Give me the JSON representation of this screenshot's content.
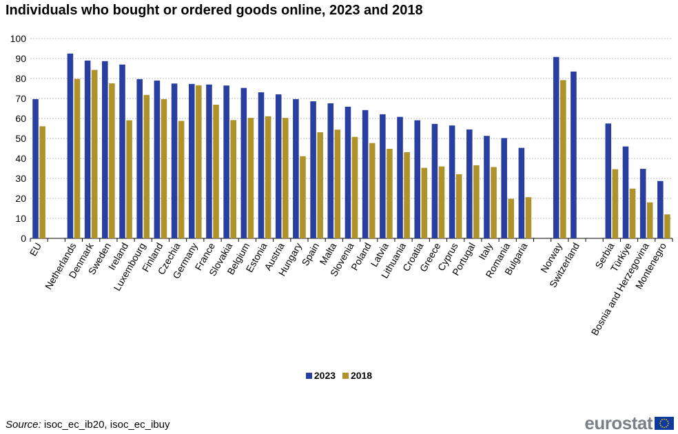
{
  "title": "Individuals who bought or ordered goods online, 2023 and 2018",
  "legend": [
    {
      "label": "2023",
      "color": "#283fa0"
    },
    {
      "label": "2018",
      "color": "#b0922a"
    }
  ],
  "source": {
    "label": "Source:",
    "text": "isoc_ec_ib20, isoc_ec_ibuy"
  },
  "logo": {
    "text": "eurostat"
  },
  "chart_data": {
    "type": "bar",
    "title": "Individuals who bought or ordered goods online, 2023 and 2018",
    "xlabel": "",
    "ylabel": "",
    "ylim": [
      0,
      100
    ],
    "yticks": [
      0,
      10,
      20,
      30,
      40,
      50,
      60,
      70,
      80,
      90,
      100
    ],
    "grid": true,
    "legend_position": "bottom",
    "groups": [
      [
        "EU"
      ],
      [
        "Netherlands",
        "Denmark",
        "Sweden",
        "Ireland",
        "Luxembourg",
        "Finland",
        "Czechia",
        "Germany",
        "France",
        "Slovakia",
        "Belgium",
        "Estonia",
        "Austria",
        "Hungary",
        "Spain",
        "Malta",
        "Slovenia",
        "Poland",
        "Latvia",
        "Lithuania",
        "Croatia",
        "Greece",
        "Cyprus",
        "Portugal",
        "Italy",
        "Romania",
        "Bulgaria"
      ],
      [
        "Norway",
        "Switzerland"
      ],
      [
        "Serbia",
        "Türkiye",
        "Bosnia and Herzegovina",
        "Montenegro"
      ]
    ],
    "categories": [
      "EU",
      "Netherlands",
      "Denmark",
      "Sweden",
      "Ireland",
      "Luxembourg",
      "Finland",
      "Czechia",
      "Germany",
      "France",
      "Slovakia",
      "Belgium",
      "Estonia",
      "Austria",
      "Hungary",
      "Spain",
      "Malta",
      "Slovenia",
      "Poland",
      "Latvia",
      "Lithuania",
      "Croatia",
      "Greece",
      "Cyprus",
      "Portugal",
      "Italy",
      "Romania",
      "Bulgaria",
      "Norway",
      "Switzerland",
      "Serbia",
      "Türkiye",
      "Bosnia and Herzegovina",
      "Montenegro"
    ],
    "series": [
      {
        "name": "2023",
        "color": "#283fa0",
        "values": [
          69.7,
          92.5,
          89.0,
          88.7,
          87.0,
          79.7,
          79.0,
          77.5,
          77.3,
          77.0,
          76.5,
          75.3,
          73.1,
          72.1,
          69.7,
          68.6,
          67.6,
          65.9,
          64.2,
          62.1,
          60.8,
          59.1,
          57.3,
          56.5,
          54.5,
          51.3,
          50.2,
          45.3,
          90.8,
          83.5,
          57.5,
          46.0,
          34.8,
          28.7
        ]
      },
      {
        "name": "2018",
        "color": "#b0922a",
        "values": [
          56.1,
          79.8,
          84.3,
          77.6,
          59.1,
          71.8,
          69.7,
          58.8,
          76.6,
          66.9,
          59.2,
          60.3,
          61.1,
          60.3,
          41.1,
          53.1,
          54.4,
          50.8,
          47.7,
          44.8,
          43.1,
          35.3,
          36.0,
          32.1,
          36.6,
          35.7,
          19.8,
          20.6,
          79.2,
          null,
          34.6,
          24.9,
          18.0,
          12.0
        ]
      }
    ]
  }
}
